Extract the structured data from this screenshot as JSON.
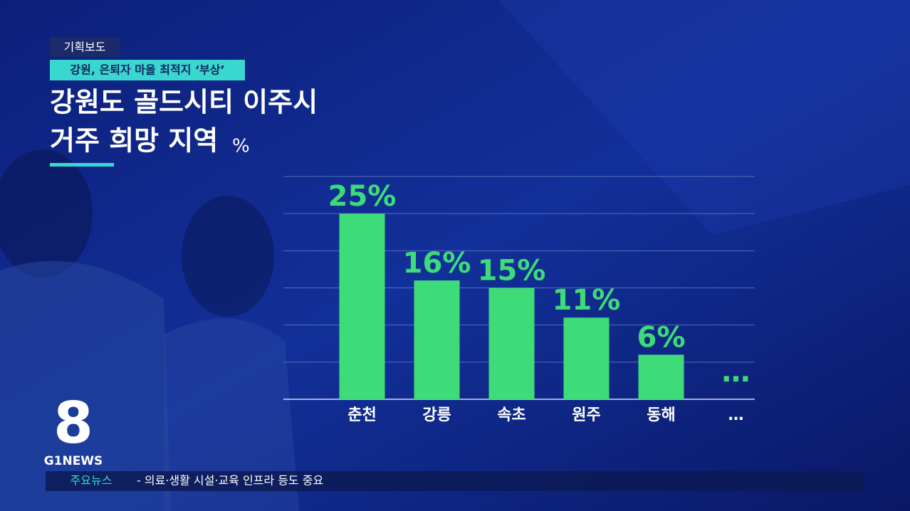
{
  "kicker": "기획보도",
  "subtitle": "강원, 은퇴자 마을 최적지 ‘부상’",
  "logo": {
    "number": "8",
    "brand": "G1NEWS"
  },
  "ticker": {
    "label": "주요뉴스",
    "text": "- 의료·생활 시설·교육 인프라 등도 중요"
  },
  "chart_data": {
    "type": "bar",
    "title": [
      "강원도 골드시티 이주시",
      "거주 희망 지역"
    ],
    "unit": "%",
    "categories": [
      "춘천",
      "강릉",
      "속초",
      "원주",
      "동해",
      "…"
    ],
    "values": [
      25,
      16,
      15,
      11,
      6,
      null
    ],
    "value_labels": [
      "25%",
      "16%",
      "15%",
      "11%",
      "6%",
      "…"
    ],
    "color": "#3ddc78",
    "ylim": [
      0,
      30
    ],
    "yticks": [
      0,
      5,
      10,
      15,
      20,
      25,
      30
    ],
    "show_tick_labels": false,
    "grid": true
  }
}
